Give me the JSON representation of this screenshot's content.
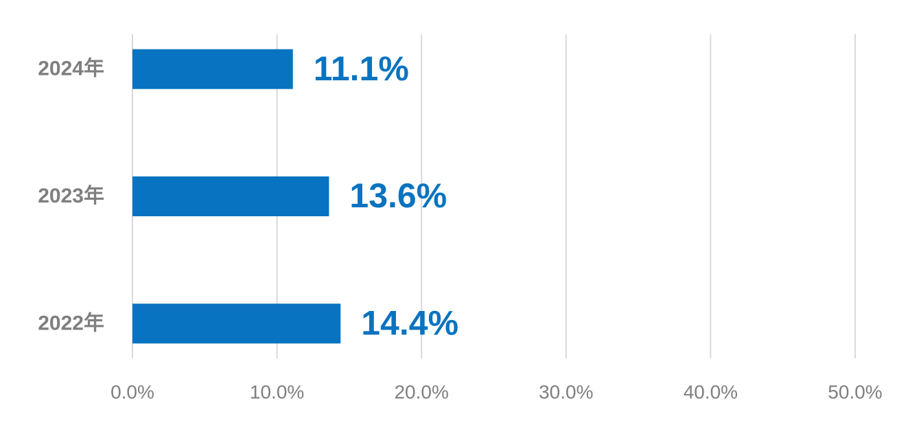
{
  "chart_data": {
    "type": "bar",
    "orientation": "horizontal",
    "categories": [
      "2024年",
      "2023年",
      "2022年"
    ],
    "values": [
      11.1,
      13.6,
      14.4
    ],
    "value_labels": [
      "11.1%",
      "13.6%",
      "14.4%"
    ],
    "color": "#0873c0",
    "xlim": [
      0,
      50
    ],
    "xticks": [
      {
        "value": 0,
        "label": "0.0%"
      },
      {
        "value": 10,
        "label": "10.0%"
      },
      {
        "value": 20,
        "label": "20.0%"
      },
      {
        "value": 30,
        "label": "30.0%"
      },
      {
        "value": 40,
        "label": "40.0%"
      },
      {
        "value": 50,
        "label": "50.0%"
      }
    ],
    "grid": true
  }
}
